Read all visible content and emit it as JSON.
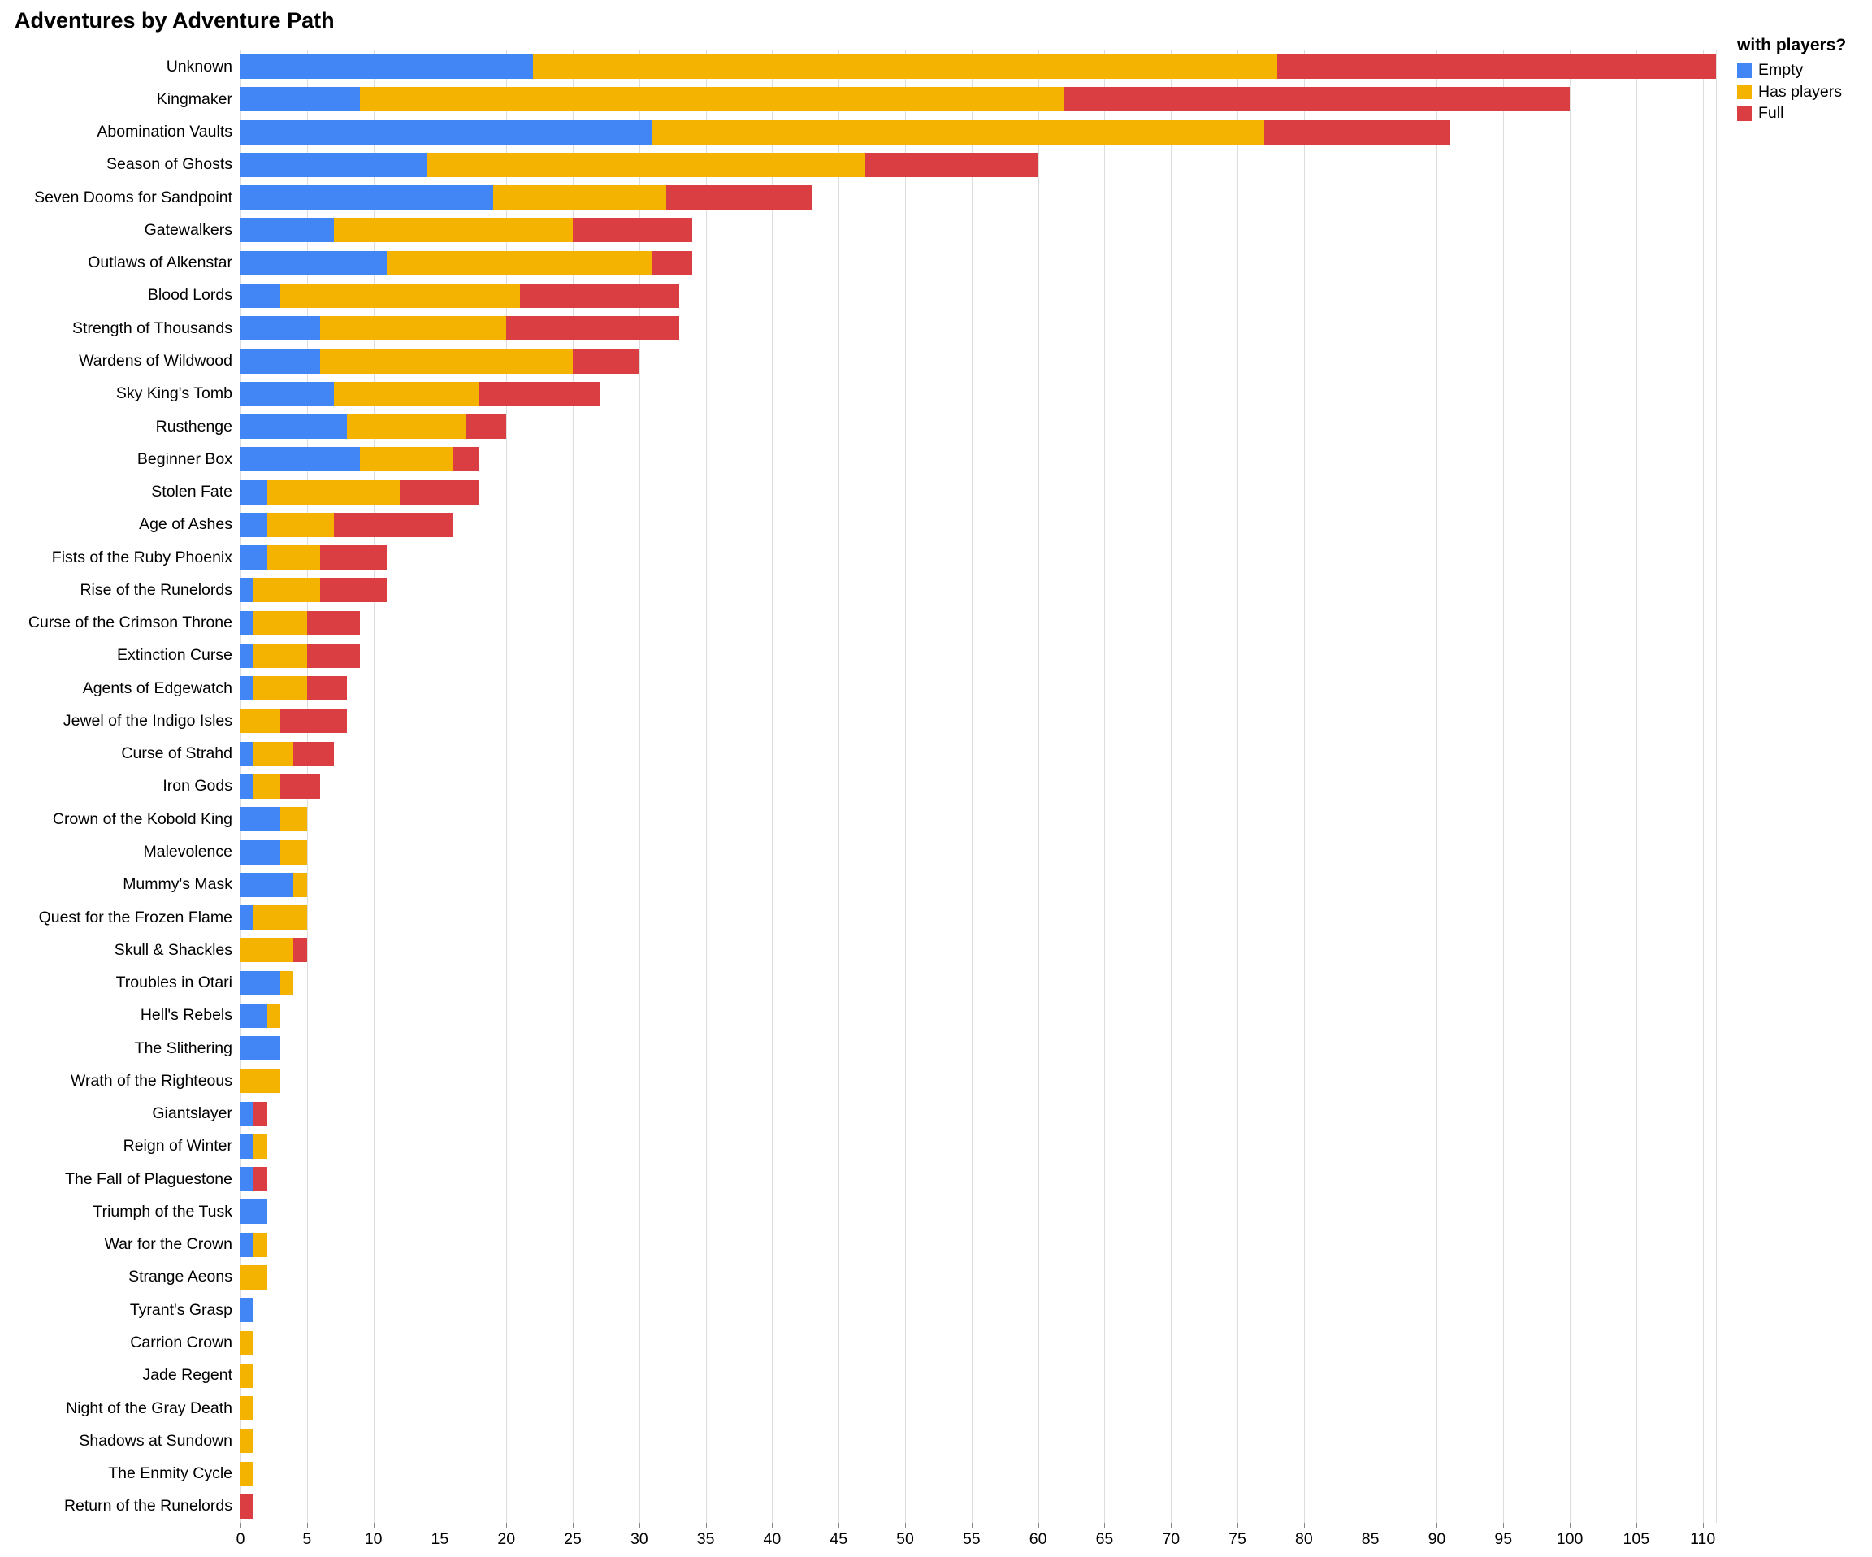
{
  "title": "Adventures by Adventure Path",
  "legend": {
    "title": "with players?",
    "items": [
      {
        "label": "Empty",
        "color": "#4285f4"
      },
      {
        "label": "Has players",
        "color": "#f4b301"
      },
      {
        "label": "Full",
        "color": "#db3e42"
      }
    ]
  },
  "chart_data": {
    "type": "bar",
    "orientation": "horizontal",
    "stacked": true,
    "title": "Adventures by Adventure Path",
    "xlabel": "",
    "ylabel": "",
    "xlim": [
      0,
      111
    ],
    "x_ticks": [
      0,
      5,
      10,
      15,
      20,
      25,
      30,
      35,
      40,
      45,
      50,
      55,
      60,
      65,
      70,
      75,
      80,
      85,
      90,
      95,
      100,
      105,
      110
    ],
    "grid": true,
    "legend_position": "top-right",
    "categories": [
      "Unknown",
      "Kingmaker",
      "Abomination Vaults",
      "Season of Ghosts",
      "Seven Dooms for Sandpoint",
      "Gatewalkers",
      "Outlaws of Alkenstar",
      "Blood Lords",
      "Strength of Thousands",
      "Wardens of Wildwood",
      "Sky King's Tomb",
      "Rusthenge",
      "Beginner Box",
      "Stolen Fate",
      "Age of Ashes",
      "Fists of the Ruby Phoenix",
      "Rise of the Runelords",
      "Curse of the Crimson Throne",
      "Extinction Curse",
      "Agents of Edgewatch",
      "Jewel of the Indigo Isles",
      "Curse of Strahd",
      "Iron Gods",
      "Crown of the Kobold King",
      "Malevolence",
      "Mummy's Mask",
      "Quest for the Frozen Flame",
      "Skull & Shackles",
      "Troubles in Otari",
      "Hell's Rebels",
      "The Slithering",
      "Wrath of the Righteous",
      "Giantslayer",
      "Reign of Winter",
      "The Fall of Plaguestone",
      "Triumph of the Tusk",
      "War for the Crown",
      "Strange Aeons",
      "Tyrant's Grasp",
      "Carrion Crown",
      "Jade Regent",
      "Night of the Gray Death",
      "Shadows at Sundown",
      "The Enmity Cycle",
      "Return of the Runelords"
    ],
    "series": [
      {
        "name": "Empty",
        "color": "#4285f4",
        "values": [
          22,
          9,
          31,
          14,
          19,
          7,
          11,
          3,
          6,
          6,
          7,
          8,
          9,
          2,
          2,
          2,
          1,
          1,
          1,
          1,
          0,
          1,
          1,
          3,
          3,
          4,
          1,
          0,
          3,
          2,
          3,
          0,
          1,
          1,
          1,
          2,
          1,
          0,
          1,
          0,
          0,
          0,
          0,
          0,
          0
        ]
      },
      {
        "name": "Has players",
        "color": "#f4b301",
        "values": [
          56,
          53,
          46,
          33,
          13,
          18,
          20,
          18,
          14,
          19,
          11,
          9,
          7,
          10,
          5,
          4,
          5,
          4,
          4,
          4,
          3,
          3,
          2,
          2,
          2,
          1,
          4,
          4,
          1,
          1,
          0,
          3,
          0,
          1,
          0,
          0,
          1,
          2,
          0,
          1,
          1,
          1,
          1,
          1,
          0
        ]
      },
      {
        "name": "Full",
        "color": "#db3e42",
        "values": [
          33,
          38,
          14,
          13,
          11,
          9,
          3,
          12,
          13,
          5,
          9,
          3,
          2,
          6,
          9,
          5,
          5,
          4,
          4,
          3,
          5,
          3,
          3,
          0,
          0,
          0,
          0,
          1,
          0,
          0,
          0,
          0,
          1,
          0,
          1,
          0,
          0,
          0,
          0,
          0,
          0,
          0,
          0,
          0,
          1
        ]
      }
    ]
  }
}
